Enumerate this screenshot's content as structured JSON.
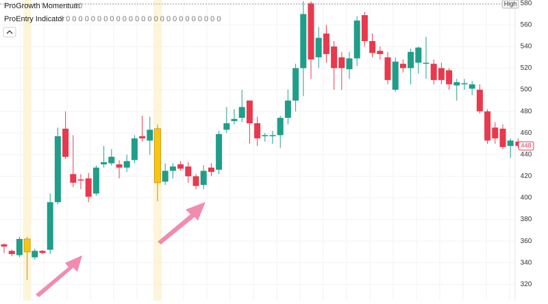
{
  "chart_data": {
    "type": "candlestick",
    "indicators": [
      {
        "name": "ProGrowth Momentum",
        "params": "10"
      },
      {
        "name": "ProEntry Indicator",
        "params": "5 0 0 0 0 0 0 0 0 0 0 0 0 0 0 0 0 0 0 0 0 0 0 0 0 0"
      }
    ],
    "high_label": "High",
    "last_price": 448,
    "ylim": [
      305,
      583
    ],
    "yticks": [
      320,
      340,
      360,
      380,
      400,
      420,
      440,
      460,
      480,
      500,
      520,
      540,
      560,
      580
    ],
    "grid": true,
    "up_color": "#1f9e89",
    "down_color": "#e8394d",
    "highlight_color": "#f9c513",
    "highlighted": [
      3,
      20
    ],
    "open": [
      357,
      351,
      347,
      362,
      345,
      351,
      352,
      396,
      464,
      422,
      417,
      418,
      404,
      431,
      432,
      431,
      428,
      435,
      457,
      453,
      464,
      415,
      425,
      431,
      429,
      420,
      412,
      428,
      426,
      463,
      471,
      474,
      490,
      469,
      457,
      457,
      458,
      474,
      490,
      520,
      580,
      530,
      552,
      540,
      530,
      519,
      529,
      569,
      545,
      536,
      530,
      500,
      524,
      520,
      525,
      524,
      524,
      520,
      518,
      504,
      505,
      501,
      500,
      480,
      465,
      464,
      448,
      452
    ],
    "high": [
      358,
      352,
      364,
      364,
      353,
      352,
      404,
      465,
      480,
      458,
      422,
      423,
      430,
      448,
      445,
      435,
      440,
      458,
      476,
      475,
      468,
      432,
      432,
      434,
      433,
      422,
      430,
      432,
      462,
      484,
      482,
      500,
      490,
      475,
      460,
      462,
      476,
      500,
      524,
      582,
      582,
      558,
      560,
      545,
      535,
      535,
      568,
      572,
      552,
      540,
      535,
      530,
      528,
      538,
      540,
      549,
      528,
      525,
      520,
      510,
      510,
      508,
      505,
      482,
      470,
      468,
      455,
      455
    ],
    "low": [
      349,
      346,
      345,
      324,
      343,
      348,
      348,
      394,
      436,
      410,
      408,
      396,
      402,
      428,
      430,
      418,
      424,
      432,
      452,
      440,
      397,
      412,
      418,
      425,
      414,
      408,
      408,
      420,
      422,
      460,
      468,
      470,
      450,
      448,
      452,
      450,
      446,
      468,
      480,
      494,
      510,
      520,
      525,
      500,
      500,
      510,
      522,
      540,
      530,
      528,
      505,
      498,
      516,
      505,
      515,
      510,
      505,
      505,
      500,
      490,
      500,
      495,
      478,
      450,
      450,
      445,
      437,
      446
    ],
    "close": [
      355,
      348,
      362,
      350,
      351,
      349,
      396,
      457,
      438,
      414,
      416,
      401,
      428,
      433,
      438,
      428,
      434,
      455,
      455,
      463,
      414,
      425,
      429,
      427,
      420,
      411,
      425,
      424,
      459,
      469,
      473,
      484,
      469,
      455,
      458,
      458,
      474,
      490,
      520,
      570,
      528,
      548,
      533,
      520,
      520,
      529,
      564,
      545,
      534,
      533,
      509,
      526,
      520,
      535,
      539,
      525,
      509,
      509,
      505,
      507,
      506,
      505,
      480,
      453,
      455,
      447,
      453,
      448
    ]
  }
}
